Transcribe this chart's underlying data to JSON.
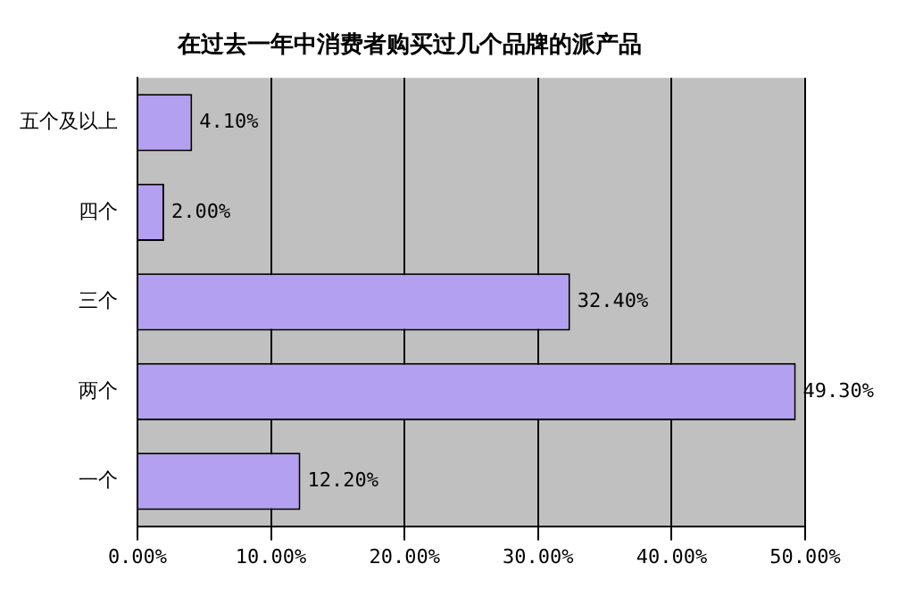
{
  "chart_data": {
    "type": "bar",
    "orientation": "horizontal",
    "title": "在过去一年中消费者购买过几个品牌的派产品",
    "categories": [
      "五个及以上",
      "四个",
      "三个",
      "两个",
      "一个"
    ],
    "values": [
      4.1,
      2.0,
      32.4,
      49.3,
      12.2
    ],
    "value_labels": [
      "4.10%",
      "2.00%",
      "32.40%",
      "49.30%",
      "12.20%"
    ],
    "color": "#b4a0f0",
    "xlim": [
      0,
      50
    ],
    "xticks": [
      {
        "value": 0,
        "label": "0.00%"
      },
      {
        "value": 10,
        "label": "10.00%"
      },
      {
        "value": 20,
        "label": "20.00%"
      },
      {
        "value": 30,
        "label": "30.00%"
      },
      {
        "value": 40,
        "label": "40.00%"
      },
      {
        "value": 50,
        "label": "50.00%"
      }
    ],
    "grid": "x",
    "legend": false
  }
}
